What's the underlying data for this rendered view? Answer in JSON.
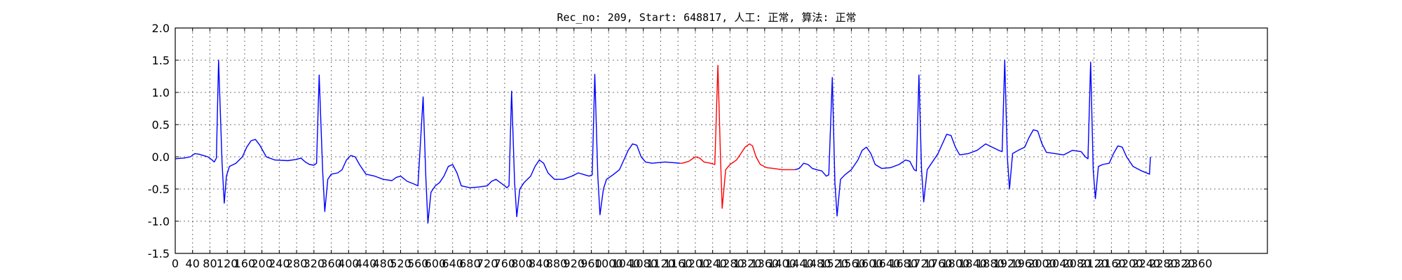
{
  "chart_data": {
    "type": "line",
    "title": "Rec_no: 209, Start: 648817, 人工: 正常, 算法: 正常",
    "xlabel": "",
    "ylabel": "",
    "xlim": [
      0,
      2520
    ],
    "ylim": [
      -1.5,
      2.0
    ],
    "grid": true,
    "xticks": [
      0,
      40,
      80,
      120,
      160,
      200,
      240,
      280,
      320,
      360,
      400,
      440,
      480,
      520,
      560,
      600,
      640,
      680,
      720,
      760,
      800,
      840,
      880,
      920,
      960,
      1000,
      1040,
      1080,
      1120,
      1160,
      1200,
      1240,
      1280,
      1320,
      1360,
      1400,
      1440,
      1480,
      1520,
      1560,
      1600,
      1640,
      1680,
      1720,
      1760,
      1800,
      1840,
      1880,
      1920,
      1960,
      2000,
      2040,
      2080,
      2120,
      2160,
      2200,
      2240,
      2280,
      2320,
      2360
    ],
    "yticks": [
      -1.5,
      -1.0,
      -0.5,
      0.0,
      0.5,
      1.0,
      1.5,
      2.0
    ],
    "colors": {
      "normal": "#0000ff",
      "highlight": "#ff0000"
    },
    "highlight_range": [
      1170,
      1430
    ],
    "series": [
      {
        "values": [
          [
            0,
            -0.03
          ],
          [
            20,
            -0.02
          ],
          [
            35,
            0.0
          ],
          [
            45,
            0.05
          ],
          [
            55,
            0.04
          ],
          [
            65,
            0.02
          ],
          [
            75,
            0.0
          ],
          [
            85,
            -0.05
          ],
          [
            90,
            -0.08
          ],
          [
            95,
            -0.02
          ],
          [
            100,
            1.5
          ],
          [
            108,
            -0.1
          ],
          [
            113,
            -0.72
          ],
          [
            118,
            -0.3
          ],
          [
            125,
            -0.15
          ],
          [
            140,
            -0.1
          ],
          [
            155,
            0.0
          ],
          [
            165,
            0.15
          ],
          [
            175,
            0.25
          ],
          [
            185,
            0.27
          ],
          [
            195,
            0.18
          ],
          [
            210,
            0.0
          ],
          [
            230,
            -0.05
          ],
          [
            260,
            -0.06
          ],
          [
            280,
            -0.04
          ],
          [
            290,
            -0.02
          ],
          [
            300,
            -0.08
          ],
          [
            310,
            -0.12
          ],
          [
            320,
            -0.13
          ],
          [
            326,
            -0.1
          ],
          [
            332,
            1.27
          ],
          [
            340,
            -0.2
          ],
          [
            345,
            -0.85
          ],
          [
            352,
            -0.35
          ],
          [
            360,
            -0.27
          ],
          [
            375,
            -0.25
          ],
          [
            385,
            -0.2
          ],
          [
            395,
            -0.05
          ],
          [
            405,
            0.02
          ],
          [
            415,
            0.0
          ],
          [
            425,
            -0.12
          ],
          [
            440,
            -0.27
          ],
          [
            460,
            -0.3
          ],
          [
            480,
            -0.35
          ],
          [
            500,
            -0.37
          ],
          [
            510,
            -0.32
          ],
          [
            520,
            -0.3
          ],
          [
            535,
            -0.38
          ],
          [
            550,
            -0.42
          ],
          [
            560,
            -0.45
          ],
          [
            572,
            0.93
          ],
          [
            578,
            -0.3
          ],
          [
            583,
            -1.03
          ],
          [
            590,
            -0.55
          ],
          [
            600,
            -0.45
          ],
          [
            610,
            -0.4
          ],
          [
            620,
            -0.3
          ],
          [
            630,
            -0.15
          ],
          [
            640,
            -0.12
          ],
          [
            650,
            -0.25
          ],
          [
            660,
            -0.45
          ],
          [
            680,
            -0.48
          ],
          [
            700,
            -0.47
          ],
          [
            720,
            -0.45
          ],
          [
            730,
            -0.38
          ],
          [
            740,
            -0.35
          ],
          [
            750,
            -0.4
          ],
          [
            760,
            -0.45
          ],
          [
            765,
            -0.48
          ],
          [
            770,
            -0.45
          ],
          [
            776,
            1.02
          ],
          [
            783,
            -0.4
          ],
          [
            788,
            -0.93
          ],
          [
            795,
            -0.5
          ],
          [
            805,
            -0.4
          ],
          [
            820,
            -0.3
          ],
          [
            830,
            -0.15
          ],
          [
            840,
            -0.05
          ],
          [
            850,
            -0.1
          ],
          [
            860,
            -0.25
          ],
          [
            875,
            -0.35
          ],
          [
            895,
            -0.35
          ],
          [
            915,
            -0.3
          ],
          [
            930,
            -0.25
          ],
          [
            945,
            -0.28
          ],
          [
            955,
            -0.3
          ],
          [
            962,
            -0.28
          ],
          [
            968,
            1.28
          ],
          [
            975,
            -0.3
          ],
          [
            980,
            -0.9
          ],
          [
            988,
            -0.5
          ],
          [
            995,
            -0.35
          ],
          [
            1010,
            -0.28
          ],
          [
            1025,
            -0.2
          ],
          [
            1035,
            -0.05
          ],
          [
            1045,
            0.1
          ],
          [
            1055,
            0.2
          ],
          [
            1065,
            0.18
          ],
          [
            1075,
            0.0
          ],
          [
            1085,
            -0.08
          ],
          [
            1100,
            -0.1
          ],
          [
            1130,
            -0.08
          ],
          [
            1165,
            -0.1
          ],
          [
            1170,
            -0.1
          ],
          [
            1185,
            -0.07
          ],
          [
            1200,
            0.0
          ],
          [
            1210,
            -0.02
          ],
          [
            1220,
            -0.08
          ],
          [
            1235,
            -0.1
          ],
          [
            1245,
            -0.12
          ],
          [
            1252,
            1.42
          ],
          [
            1258,
            0.0
          ],
          [
            1262,
            -0.8
          ],
          [
            1270,
            -0.2
          ],
          [
            1280,
            -0.12
          ],
          [
            1295,
            -0.05
          ],
          [
            1305,
            0.05
          ],
          [
            1315,
            0.15
          ],
          [
            1325,
            0.2
          ],
          [
            1332,
            0.17
          ],
          [
            1340,
            0.0
          ],
          [
            1350,
            -0.12
          ],
          [
            1365,
            -0.17
          ],
          [
            1380,
            -0.18
          ],
          [
            1400,
            -0.2
          ],
          [
            1430,
            -0.2
          ],
          [
            1440,
            -0.18
          ],
          [
            1450,
            -0.1
          ],
          [
            1460,
            -0.12
          ],
          [
            1470,
            -0.18
          ],
          [
            1480,
            -0.2
          ],
          [
            1492,
            -0.22
          ],
          [
            1502,
            -0.3
          ],
          [
            1508,
            -0.28
          ],
          [
            1516,
            1.23
          ],
          [
            1522,
            -0.4
          ],
          [
            1527,
            -0.92
          ],
          [
            1535,
            -0.35
          ],
          [
            1545,
            -0.28
          ],
          [
            1560,
            -0.2
          ],
          [
            1575,
            -0.05
          ],
          [
            1585,
            0.1
          ],
          [
            1595,
            0.15
          ],
          [
            1605,
            0.05
          ],
          [
            1615,
            -0.12
          ],
          [
            1630,
            -0.18
          ],
          [
            1650,
            -0.17
          ],
          [
            1670,
            -0.12
          ],
          [
            1685,
            -0.05
          ],
          [
            1695,
            -0.07
          ],
          [
            1705,
            -0.2
          ],
          [
            1710,
            -0.22
          ],
          [
            1716,
            1.27
          ],
          [
            1722,
            -0.2
          ],
          [
            1727,
            -0.7
          ],
          [
            1735,
            -0.2
          ],
          [
            1745,
            -0.1
          ],
          [
            1760,
            0.05
          ],
          [
            1770,
            0.2
          ],
          [
            1780,
            0.35
          ],
          [
            1790,
            0.33
          ],
          [
            1800,
            0.15
          ],
          [
            1810,
            0.03
          ],
          [
            1830,
            0.05
          ],
          [
            1850,
            0.1
          ],
          [
            1870,
            0.2
          ],
          [
            1885,
            0.15
          ],
          [
            1900,
            0.1
          ],
          [
            1908,
            0.08
          ],
          [
            1914,
            1.5
          ],
          [
            1920,
            0.0
          ],
          [
            1925,
            -0.5
          ],
          [
            1932,
            0.05
          ],
          [
            1945,
            0.1
          ],
          [
            1960,
            0.15
          ],
          [
            1970,
            0.3
          ],
          [
            1980,
            0.42
          ],
          [
            1990,
            0.4
          ],
          [
            2000,
            0.2
          ],
          [
            2010,
            0.07
          ],
          [
            2030,
            0.05
          ],
          [
            2050,
            0.03
          ],
          [
            2070,
            0.1
          ],
          [
            2090,
            0.08
          ],
          [
            2100,
            0.0
          ],
          [
            2106,
            -0.03
          ],
          [
            2112,
            1.47
          ],
          [
            2118,
            -0.2
          ],
          [
            2123,
            -0.65
          ],
          [
            2130,
            -0.15
          ],
          [
            2140,
            -0.12
          ],
          [
            2155,
            -0.1
          ],
          [
            2165,
            0.05
          ],
          [
            2175,
            0.17
          ],
          [
            2185,
            0.15
          ],
          [
            2195,
            0.0
          ],
          [
            2210,
            -0.15
          ],
          [
            2230,
            -0.22
          ],
          [
            2248,
            -0.27
          ],
          [
            2250,
            0.0
          ]
        ]
      }
    ]
  }
}
